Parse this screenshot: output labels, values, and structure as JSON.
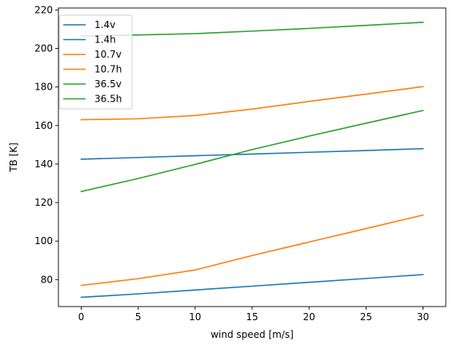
{
  "chart_data": {
    "type": "line",
    "xlabel": "wind speed [m/s]",
    "ylabel": "TB [K]",
    "xlim": [
      -2,
      32
    ],
    "ylim": [
      66,
      221
    ],
    "xticks": [
      0,
      5,
      10,
      15,
      20,
      25,
      30
    ],
    "yticks": [
      80,
      100,
      120,
      140,
      160,
      180,
      200,
      220
    ],
    "legend_position": "top-left",
    "grid": false,
    "series": [
      {
        "name": "1.4v",
        "color": "#1f77b4",
        "x": [
          0,
          5,
          10,
          15,
          20,
          25,
          30
        ],
        "y": [
          142.5,
          143.4,
          144.3,
          145.2,
          146.1,
          147.0,
          148.0
        ]
      },
      {
        "name": "1.4h",
        "color": "#1f77b4",
        "x": [
          0,
          5,
          10,
          15,
          20,
          25,
          30
        ],
        "y": [
          70.8,
          72.6,
          74.6,
          76.6,
          78.6,
          80.6,
          82.6
        ]
      },
      {
        "name": "10.7v",
        "color": "#ff7f0e",
        "x": [
          0,
          5,
          10,
          15,
          20,
          25,
          30
        ],
        "y": [
          77.0,
          80.5,
          85.0,
          92.5,
          99.5,
          106.5,
          113.5
        ]
      },
      {
        "name": "10.7h",
        "color": "#ff7f0e",
        "x": [
          0,
          5,
          10,
          15,
          20,
          25,
          30
        ],
        "y": [
          163.0,
          163.5,
          165.2,
          168.5,
          172.5,
          176.3,
          180.2
        ]
      },
      {
        "name": "36.5v",
        "color": "#2ca02c",
        "x": [
          0,
          5,
          10,
          15,
          20,
          25,
          30
        ],
        "y": [
          125.7,
          132.5,
          139.8,
          147.5,
          154.5,
          161.2,
          167.8
        ]
      },
      {
        "name": "36.5h",
        "color": "#2ca02c",
        "x": [
          0,
          5,
          10,
          15,
          20,
          25,
          30
        ],
        "y": [
          206.5,
          207.0,
          207.7,
          209.0,
          210.4,
          212.0,
          213.6
        ]
      }
    ]
  }
}
